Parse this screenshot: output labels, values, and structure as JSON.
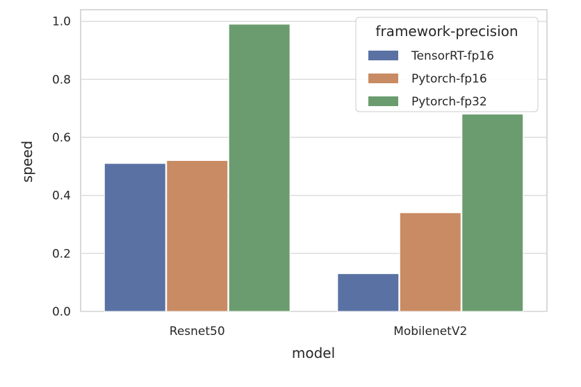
{
  "chart_data": {
    "type": "bar",
    "categories": [
      "Resnet50",
      "MobilenetV2"
    ],
    "xlabel": "model",
    "ylabel": "speed",
    "ylim": [
      0,
      1.04
    ],
    "yticks": [
      "0.0",
      "0.2",
      "0.4",
      "0.6",
      "0.8",
      "1.0"
    ],
    "grid": true,
    "legend": {
      "title": "framework-precision",
      "placement": "top-right"
    },
    "series": [
      {
        "name": "TensorRT-fp16",
        "color": "#5a72a3",
        "values": [
          0.51,
          0.13
        ]
      },
      {
        "name": "Pytorch-fp16",
        "color": "#c98b63",
        "values": [
          0.52,
          0.34
        ]
      },
      {
        "name": "Pytorch-fp32",
        "color": "#6b9c6f",
        "values": [
          0.99,
          0.68
        ]
      }
    ]
  }
}
